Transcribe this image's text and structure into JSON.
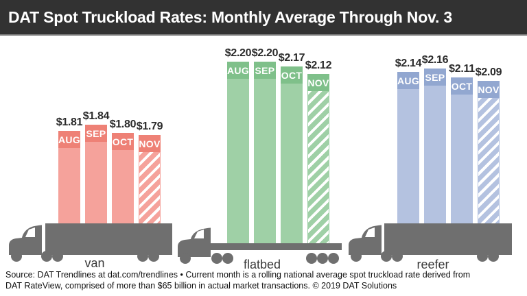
{
  "header": {
    "title": "DAT Spot Truckload Rates: Monthly Average Through Nov. 3"
  },
  "chart_data": {
    "type": "bar",
    "title": "DAT Spot Truckload Rates: Monthly Average Through Nov. 3",
    "unit": "$ per mile",
    "categories": [
      "AUG",
      "SEP",
      "OCT",
      "NOV"
    ],
    "hatch_last_bar": true,
    "groups": [
      {
        "name": "van",
        "values": [
          1.81,
          1.84,
          1.8,
          1.79
        ],
        "color_body": "#F5A29B",
        "color_cap": "#EE8176"
      },
      {
        "name": "flatbed",
        "values": [
          2.2,
          2.2,
          2.17,
          2.12
        ],
        "color_body": "#9FD0A6",
        "color_cap": "#7FC08A"
      },
      {
        "name": "reefer",
        "values": [
          2.14,
          2.16,
          2.11,
          2.09
        ],
        "color_body": "#B4C2E0",
        "color_cap": "#92A7D0"
      }
    ],
    "colors": {
      "header_bg": "#323232",
      "truck_gray": "#6F6F6F",
      "price_text": "#2b2b2b"
    }
  },
  "footer": {
    "line1": "Source: DAT Trendlines at dat.com/trendlines • Current month is a rolling national average spot truckload rate derived from",
    "line2": "DAT RateView, comprised of more than $65 billion in actual market transactions. © 2019 DAT Solutions"
  }
}
